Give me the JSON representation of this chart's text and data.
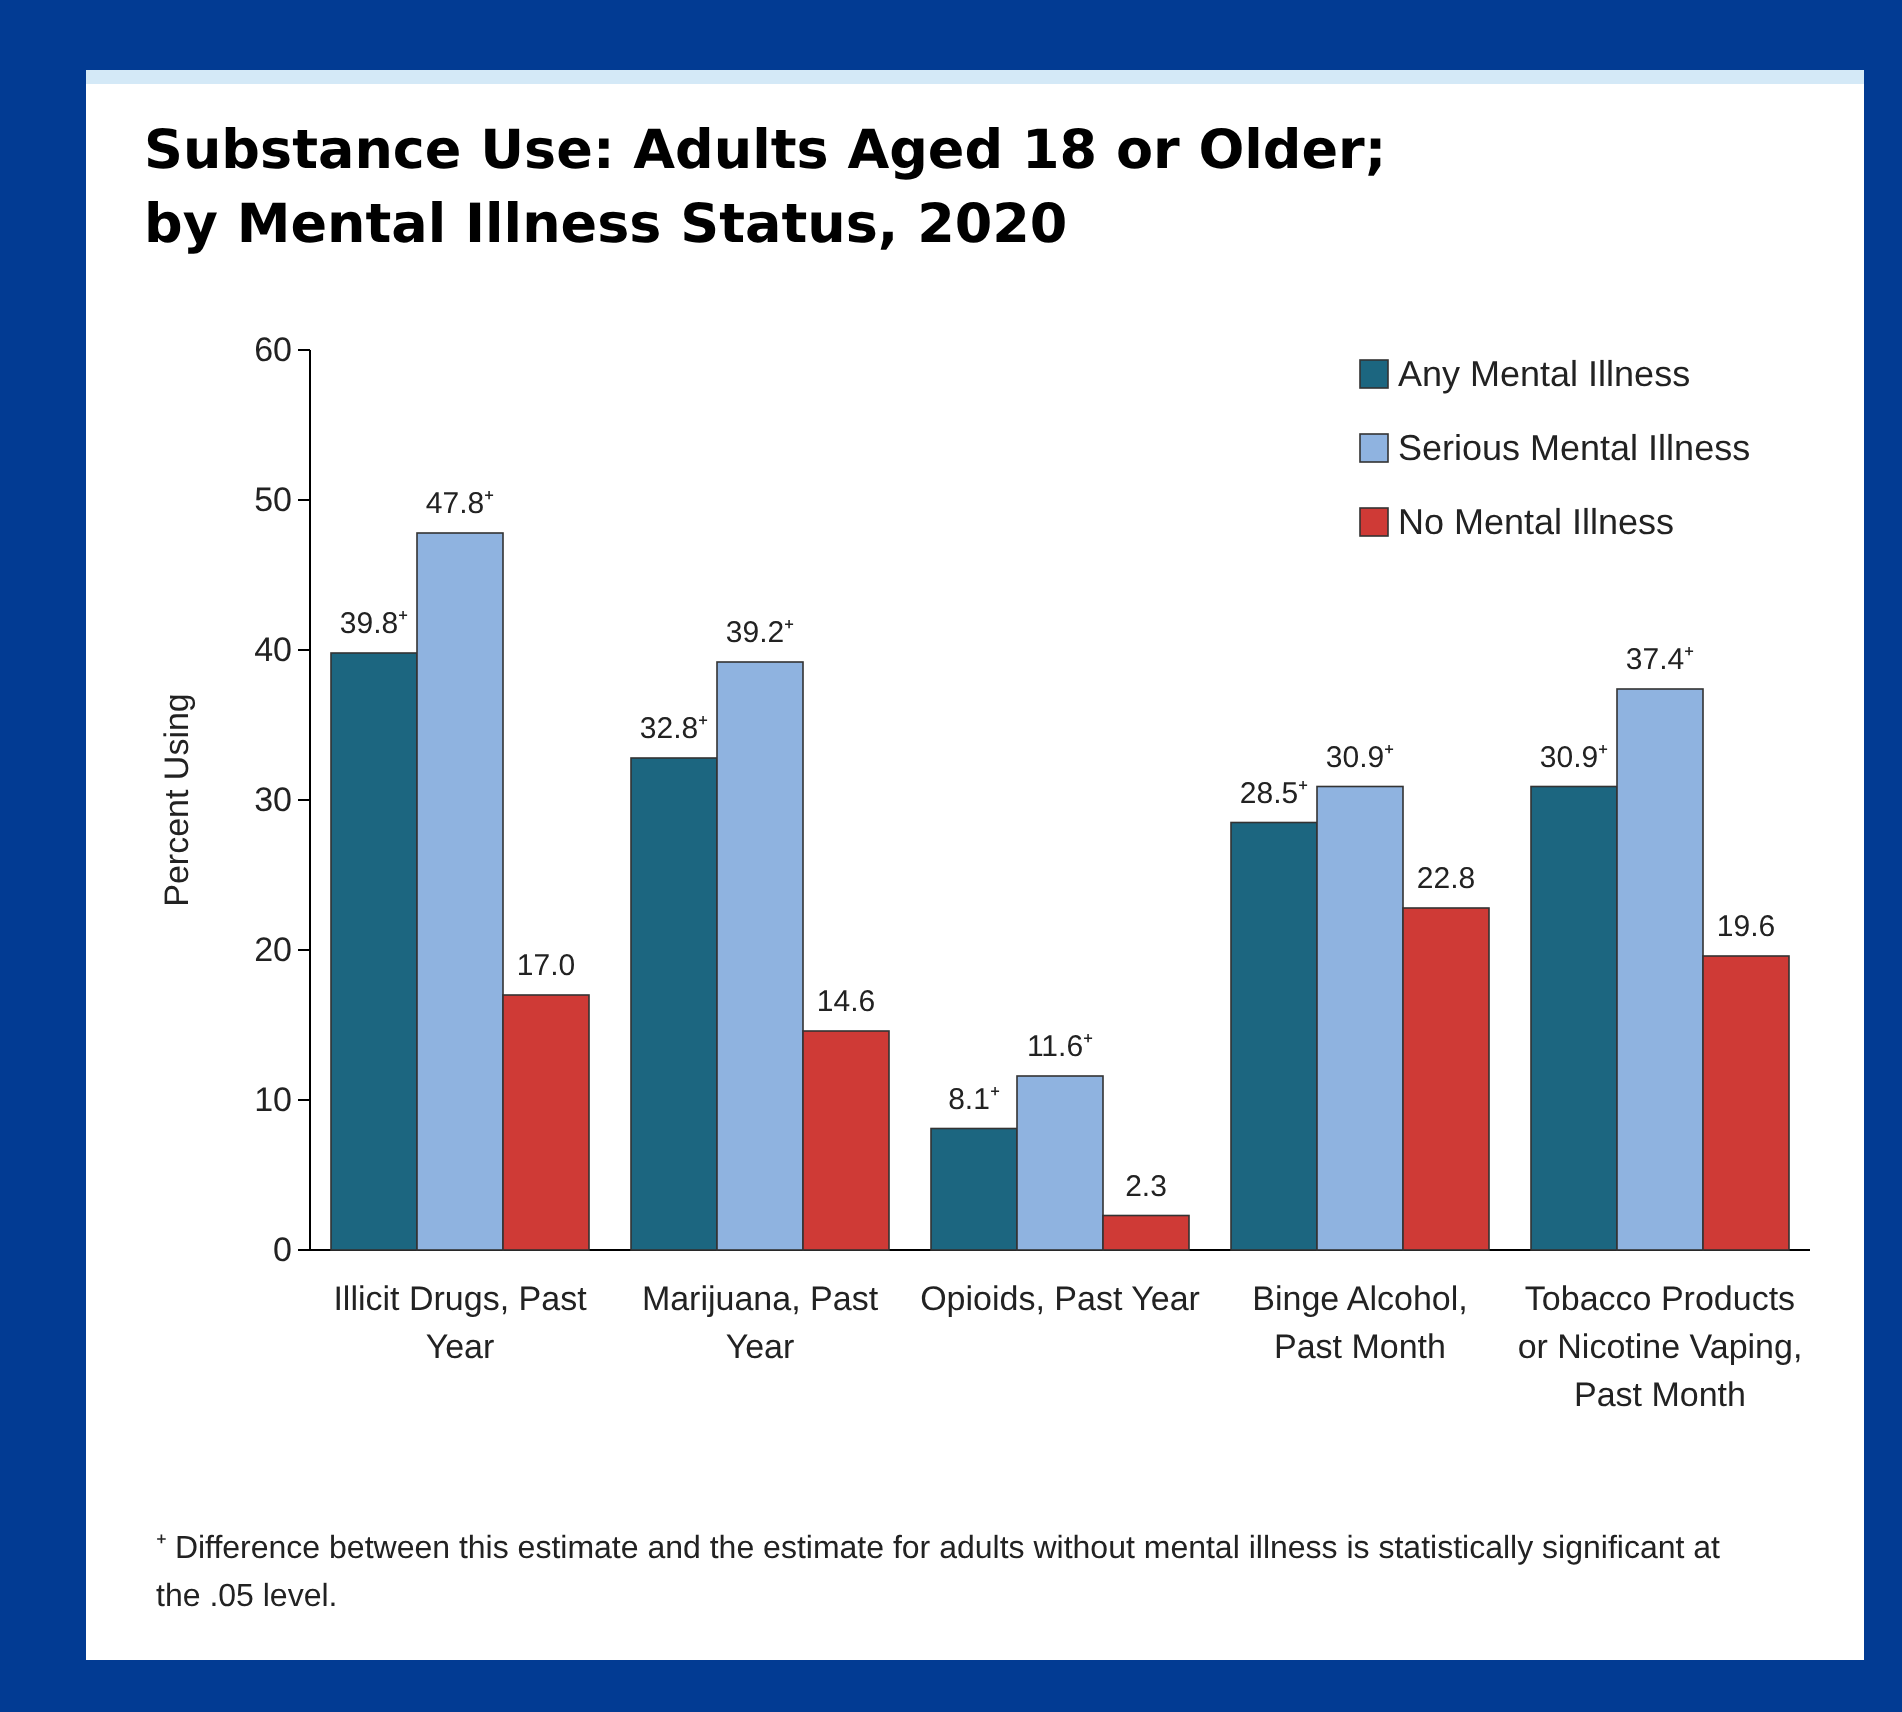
{
  "chart_data": {
    "type": "bar",
    "title": "Substance Use: Adults Aged 18 or Older; by Mental Illness Status, 2020",
    "ylabel": "Percent Using",
    "categories": [
      "Illicit Drugs, Past Year",
      "Marijuana, Past Year",
      "Opioids, Past Year",
      "Binge Alcohol, Past Month",
      "Tobacco Products or Nicotine Vaping, Past Month"
    ],
    "series": [
      {
        "name": "Any Mental Illness",
        "color": "#1c6680",
        "values": [
          39.8,
          32.8,
          8.1,
          28.5,
          30.9
        ],
        "value_labels": [
          "39.8⁺",
          "32.8⁺",
          "8.1⁺",
          "28.5⁺",
          "30.9⁺"
        ]
      },
      {
        "name": "Serious Mental Illness",
        "color": "#8fb3e0",
        "values": [
          47.8,
          39.2,
          11.6,
          30.9,
          37.4
        ],
        "value_labels": [
          "47.8⁺",
          "39.2⁺",
          "11.6⁺",
          "30.9⁺",
          "37.4⁺"
        ]
      },
      {
        "name": "No Mental Illness",
        "color": "#cf3a36",
        "values": [
          17.0,
          14.6,
          2.3,
          22.8,
          19.6
        ],
        "value_labels": [
          "17.0",
          "14.6",
          "2.3",
          "22.8",
          "19.6"
        ]
      }
    ],
    "ylim": [
      0,
      60
    ],
    "yticks": [
      0,
      10,
      20,
      30,
      40,
      50,
      60
    ],
    "grid": false,
    "legend": "top right",
    "annotations": [
      "⁺ Difference between this estimate and the estimate for adults without mental illness is statistically significant at the .05 level."
    ]
  }
}
